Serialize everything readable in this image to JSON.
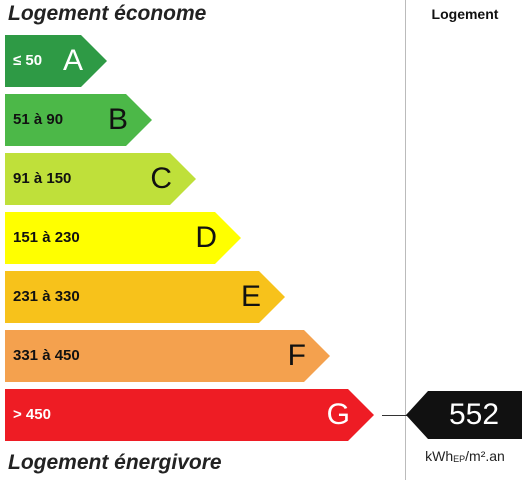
{
  "titles": {
    "top": "Logement économe",
    "bottom": "Logement énergivore"
  },
  "column_header": "Logement",
  "bands": [
    {
      "range": "≤ 50",
      "letter": "A",
      "color": "#2e9a45"
    },
    {
      "range": "51 à 90",
      "letter": "B",
      "color": "#4cb848"
    },
    {
      "range": "91 à 150",
      "letter": "C",
      "color": "#bfe03a"
    },
    {
      "range": "151 à 230",
      "letter": "D",
      "color": "#ffff00"
    },
    {
      "range": "231 à 330",
      "letter": "E",
      "color": "#f7c21b"
    },
    {
      "range": "331 à 450",
      "letter": "F",
      "color": "#f4a14e"
    },
    {
      "range": "> 450",
      "letter": "G",
      "color": "#ee1c24"
    }
  ],
  "indicator": {
    "value": "552",
    "band": "G",
    "color": "#111111"
  },
  "unit": {
    "main": "kWh",
    "subscript": "EP",
    "suffix": "/m².an"
  }
}
